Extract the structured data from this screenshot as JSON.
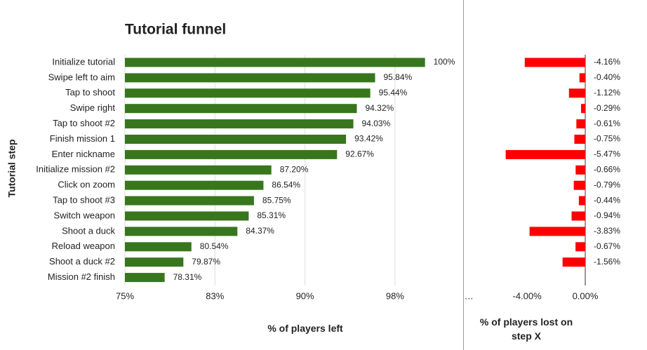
{
  "chart_data": [
    {
      "type": "hbar",
      "title": "Tutorial funnel",
      "categories": [
        "Initialize tutorial",
        "Swipe left to aim",
        "Tap to shoot",
        "Swipe right",
        "Tap to shoot #2",
        "Finish mission 1",
        "Enter nickname",
        "Initialize mission #2",
        "Click on zoom",
        "Tap to shoot #3",
        "Switch weapon",
        "Shoot a duck",
        "Reload weapon",
        "Shoot a duck #2",
        "Mission #2 finish"
      ],
      "values": [
        100,
        95.84,
        95.44,
        94.32,
        94.03,
        93.42,
        92.67,
        87.2,
        86.54,
        85.75,
        85.31,
        84.37,
        80.54,
        79.87,
        78.31
      ],
      "value_labels": [
        "100%",
        "95.84%",
        "95.44%",
        "94.32%",
        "94.03%",
        "93.42%",
        "92.67%",
        "87.20%",
        "86.54%",
        "85.75%",
        "85.31%",
        "84.37%",
        "80.54%",
        "79.87%",
        "78.31%"
      ],
      "color": "#38761d",
      "xlim": [
        75,
        103
      ],
      "xticks": [
        {
          "value": 75,
          "label": "75%"
        },
        {
          "value": 82.5,
          "label": "83%"
        },
        {
          "value": 90,
          "label": "90%"
        },
        {
          "value": 97.5,
          "label": "98%"
        }
      ],
      "xlabel": "% of players left",
      "ylabel": "Tutorial step",
      "grid": true
    },
    {
      "type": "hbar",
      "values": [
        -4.16,
        -0.4,
        -1.12,
        -0.29,
        -0.61,
        -0.75,
        -5.47,
        -0.66,
        -0.79,
        -0.44,
        -0.94,
        -3.83,
        -0.67,
        -1.56
      ],
      "value_labels": [
        "-4.16%",
        "-0.40%",
        "-1.12%",
        "-0.29%",
        "-0.61%",
        "-0.75%",
        "-5.47%",
        "-0.66%",
        "-0.79%",
        "-0.44%",
        "-0.94%",
        "-3.83%",
        "-0.67%",
        "-1.56%"
      ],
      "color": "#ff0000",
      "xlim": [
        -8.3,
        0
      ],
      "xticks": [
        {
          "value": -8,
          "label": "…"
        },
        {
          "value": -4,
          "label": "-4.00%"
        },
        {
          "value": 0,
          "label": "0.00%"
        }
      ],
      "xlabel": "% of players lost on step X",
      "grid": false
    }
  ]
}
